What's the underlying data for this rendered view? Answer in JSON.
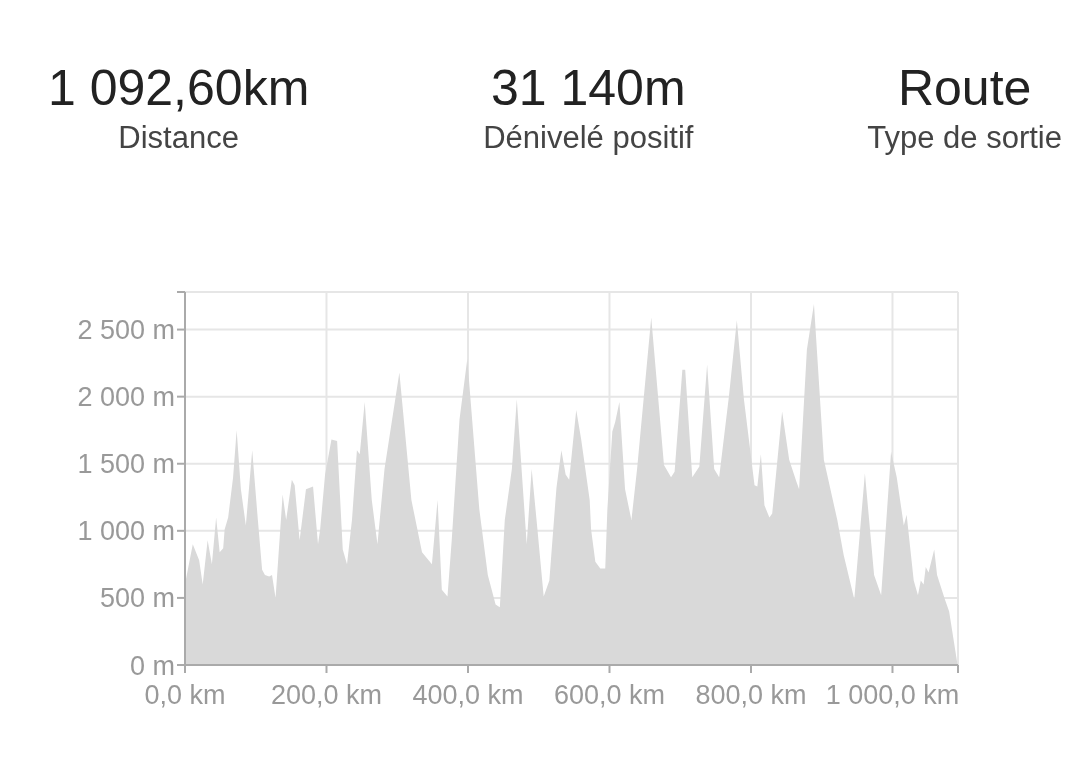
{
  "chart_data": {
    "type": "area",
    "annotations": [
      "1 092,60km",
      "Distance",
      "31 140m",
      "Dénivelé positif",
      "Route",
      "Type de sortie"
    ],
    "x": [
      0,
      1,
      11,
      20,
      25,
      32,
      38,
      44,
      49,
      54,
      56,
      61,
      68,
      73,
      79,
      86,
      95,
      103,
      109,
      113,
      119,
      123,
      128,
      138,
      143,
      151,
      155,
      162,
      171,
      181,
      188,
      191,
      198,
      207,
      215,
      223,
      229,
      236,
      243,
      247,
      254,
      264,
      272,
      282,
      303,
      320,
      335,
      349,
      357,
      363,
      371,
      377,
      388,
      399,
      416,
      428,
      439,
      445,
      452,
      462,
      469,
      483,
      490,
      498,
      507,
      515,
      525,
      532,
      538,
      543,
      553,
      560,
      572,
      574,
      580,
      587,
      594,
      597,
      604,
      608,
      614,
      622,
      631,
      639,
      659,
      677,
      687,
      692,
      703,
      707,
      717,
      727,
      738,
      748,
      755,
      769,
      780,
      790,
      805,
      809,
      814,
      819,
      826,
      830,
      844,
      854,
      864,
      868,
      879,
      889,
      903,
      922,
      931,
      946,
      961,
      974,
      984,
      998,
      1006,
      1016,
      1020,
      1030,
      1036,
      1040,
      1044,
      1047,
      1051,
      1059,
      1063,
      1074,
      1080,
      1092
    ],
    "series": [
      {
        "color": "#d9d9d9",
        "values": [
          630,
          630,
          900,
          780,
          600,
          930,
          750,
          1100,
          840,
          870,
          1010,
          1100,
          1400,
          1750,
          1310,
          1040,
          1600,
          1080,
          710,
          670,
          660,
          670,
          500,
          1270,
          1080,
          1380,
          1340,
          930,
          1310,
          1330,
          900,
          1010,
          1420,
          1680,
          1670,
          860,
          750,
          1080,
          1600,
          1570,
          1960,
          1230,
          900,
          1460,
          2180,
          1230,
          840,
          750,
          1230,
          560,
          510,
          930,
          1830,
          2280,
          1160,
          670,
          450,
          430,
          1080,
          1460,
          1980,
          900,
          1460,
          1020,
          510,
          630,
          1320,
          1600,
          1420,
          1380,
          1900,
          1680,
          1230,
          1010,
          770,
          720,
          720,
          1160,
          1740,
          1810,
          1960,
          1310,
          1080,
          1460,
          2590,
          1490,
          1400,
          1440,
          2200,
          2200,
          1400,
          1480,
          2240,
          1460,
          1400,
          2010,
          2570,
          1980,
          1340,
          1330,
          1570,
          1190,
          1100,
          1130,
          1890,
          1530,
          1370,
          1310,
          2350,
          2690,
          1530,
          1080,
          820,
          490,
          1430,
          670,
          520,
          1590,
          1400,
          1040,
          1120,
          630,
          520,
          630,
          600,
          730,
          690,
          860,
          670,
          490,
          400,
          0
        ]
      }
    ],
    "xlim": [
      0,
      1092.6
    ],
    "xticks": [
      {
        "value": 0,
        "label": "0,0 km"
      },
      {
        "value": 200,
        "label": "200,0 km"
      },
      {
        "value": 400,
        "label": "400,0 km"
      },
      {
        "value": 600,
        "label": "600,0 km"
      },
      {
        "value": 800,
        "label": "800,0 km"
      },
      {
        "value": 1000,
        "label": "1 000,0 km"
      },
      {
        "value": 1092.6,
        "label": null
      }
    ],
    "ylim": [
      0,
      2780
    ],
    "yticks": [
      {
        "value": 0,
        "label": "0 m"
      },
      {
        "value": 500,
        "label": "500 m"
      },
      {
        "value": 1000,
        "label": "1 000 m"
      },
      {
        "value": 1500,
        "label": "1 500 m"
      },
      {
        "value": 2000,
        "label": "2 000 m"
      },
      {
        "value": 2500,
        "label": "2 500 m"
      },
      {
        "value": 2780,
        "label": null
      }
    ],
    "grid": true
  }
}
